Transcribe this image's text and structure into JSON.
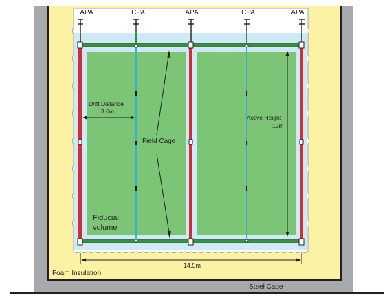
{
  "labels": {
    "apa_1": "APA",
    "cpa_1": "CPA",
    "apa_2": "APA",
    "cpa_2": "CPA",
    "apa_3": "APA",
    "drift_distance": "Drift Distance",
    "drift_value": "3.6m",
    "field_cage": "Field Cage",
    "active_height": "Active Height",
    "active_height_value": "12m",
    "fiducial_line1": "Fiducial",
    "fiducial_line2": "volume",
    "width_value": "14.5m",
    "foam_insulation": "Foam Insulation",
    "steel_cage": "Steel Cage"
  },
  "colors": {
    "steel": "#a7a9ac",
    "foam": "#fbf3a3",
    "cryostat": "#ffffff",
    "liquid_argon": "#cfe9f7",
    "fiducial_green": "#7cc576",
    "field_cage_bar": "#3d8f47",
    "apa_red": "#cf2f37",
    "cpa_blue": "#36a9e1"
  }
}
